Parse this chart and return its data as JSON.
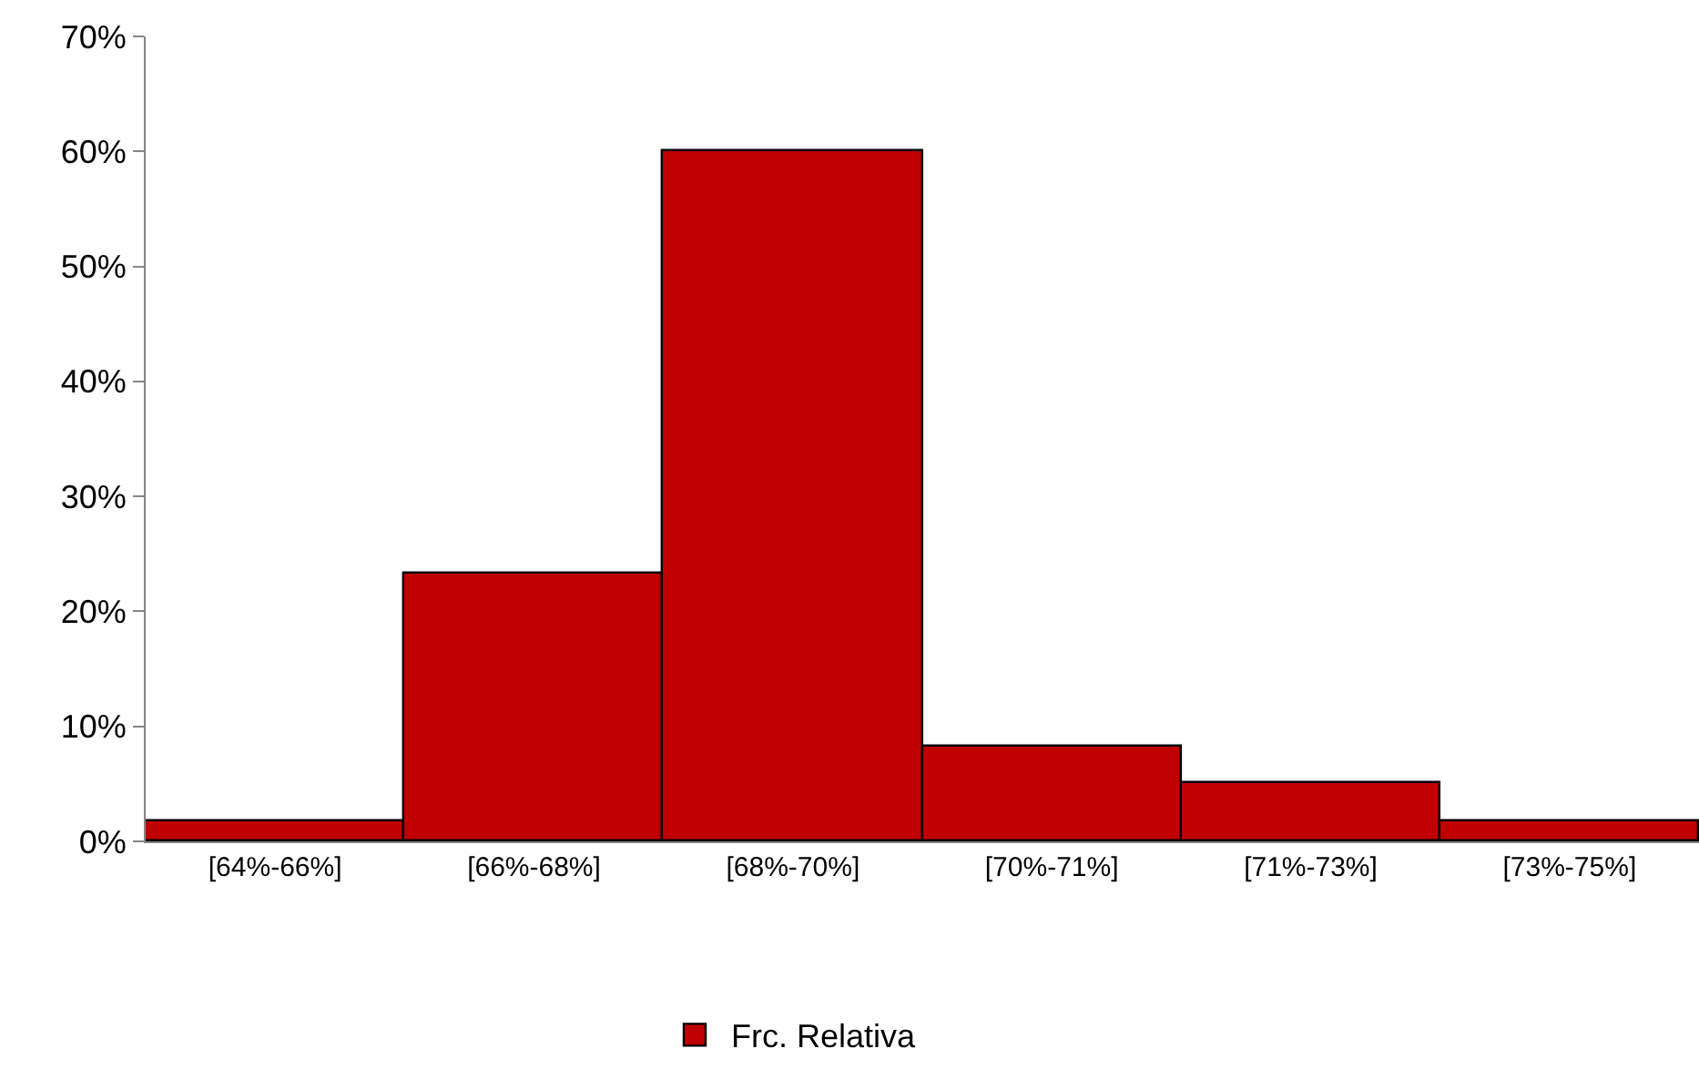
{
  "chart_data": {
    "type": "bar",
    "categories": [
      "[64%-66%]",
      "[66%-68%]",
      "[68%-70%]",
      "[70%-71%]",
      "[71%-73%]",
      "[73%-75%]"
    ],
    "series": [
      {
        "name": "Frc. Relativa",
        "color": "#c00000",
        "values": [
          1.7,
          23.3,
          60,
          8.3,
          5,
          1.7
        ]
      }
    ],
    "ylim": [
      0,
      70
    ],
    "yticks": [
      {
        "value": 0,
        "label": "0%"
      },
      {
        "value": 10,
        "label": "10%"
      },
      {
        "value": 20,
        "label": "20%"
      },
      {
        "value": 30,
        "label": "30%"
      },
      {
        "value": 40,
        "label": "40%"
      },
      {
        "value": 50,
        "label": "50%"
      },
      {
        "value": 60,
        "label": "60%"
      },
      {
        "value": 70,
        "label": "70%"
      }
    ],
    "grid": false,
    "legend": "bottom"
  }
}
